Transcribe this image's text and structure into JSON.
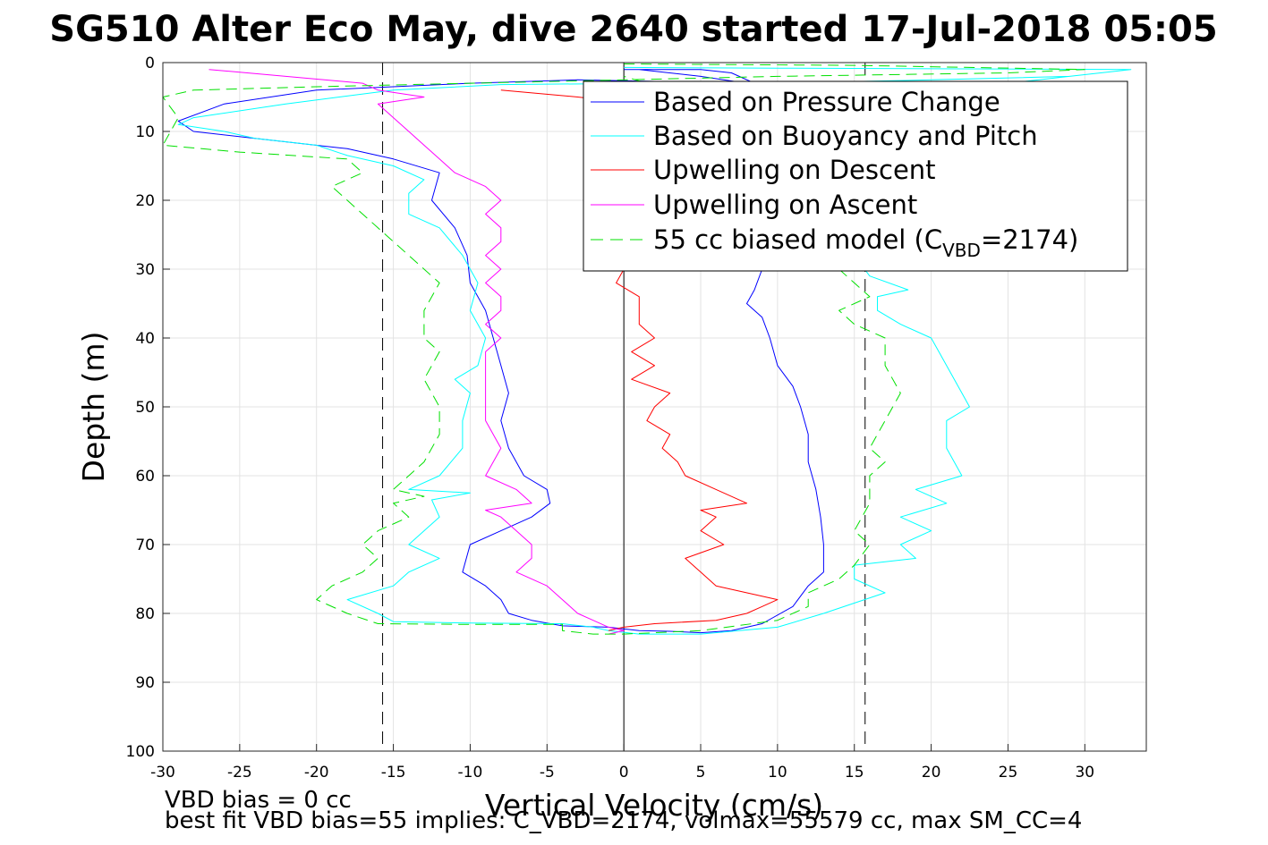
{
  "chart_data": {
    "type": "line",
    "title": "SG510 Alter Eco May, dive 2640 started 17-Jul-2018 05:05",
    "xlabel": "Vertical Velocity (cm/s)",
    "ylabel": "Depth (m)",
    "xlim": [
      -30,
      34
    ],
    "ylim": [
      0,
      100
    ],
    "y_reversed": true,
    "grid": true,
    "x_ticks": [
      "-30",
      "-25",
      "-20",
      "-15",
      "-10",
      "-5",
      "0",
      "5",
      "10",
      "15",
      "20",
      "25",
      "30"
    ],
    "y_ticks": [
      "0",
      "10",
      "20",
      "30",
      "40",
      "50",
      "60",
      "70",
      "80",
      "90",
      "100"
    ],
    "legend_position": "top-right",
    "legend": {
      "pressure": "Based on Pressure Change",
      "buoyancy": "Based on Buoyancy and Pitch",
      "descent": "Upwelling on Descent",
      "ascent": "Upwelling on Ascent",
      "model_prefix": "55 cc biased model (C",
      "model_sub": "VBD",
      "model_suffix": "=2174)"
    },
    "vertical_lines": [
      {
        "x": 0,
        "style": "solid",
        "color": "#000000"
      },
      {
        "x": -15.7,
        "style": "dashed",
        "color": "#000000"
      },
      {
        "x": 15.7,
        "style": "dashed",
        "color": "#000000"
      }
    ],
    "series": [
      {
        "key": "pressure",
        "color": "#0000ff",
        "style": "solid",
        "points": [
          [
            0,
            1
          ],
          [
            1,
            1
          ],
          [
            5,
            2
          ],
          [
            8,
            3
          ],
          [
            -3,
            2.5
          ],
          [
            -10,
            3
          ],
          [
            -20,
            4
          ],
          [
            -26,
            6
          ],
          [
            -29,
            8.5
          ],
          [
            -28,
            10
          ],
          [
            -24,
            11
          ],
          [
            -18,
            12.5
          ],
          [
            -15,
            14
          ],
          [
            -12,
            16
          ],
          [
            -12.5,
            20
          ],
          [
            -11,
            24
          ],
          [
            -10.2,
            28
          ],
          [
            -10,
            32
          ],
          [
            -9,
            36
          ],
          [
            -8.5,
            40
          ],
          [
            -8,
            44
          ],
          [
            -7.5,
            48
          ],
          [
            -8,
            52
          ],
          [
            -7.5,
            56
          ],
          [
            -6.5,
            60
          ],
          [
            -5,
            62
          ],
          [
            -4.8,
            64
          ],
          [
            -6,
            66
          ],
          [
            -8,
            68
          ],
          [
            -10,
            70
          ],
          [
            -10.5,
            74
          ],
          [
            -9,
            76
          ],
          [
            -8,
            78
          ],
          [
            -7.5,
            80
          ],
          [
            -6,
            81
          ],
          [
            -4,
            81.8
          ],
          [
            -1,
            82
          ],
          [
            1,
            82.5
          ],
          [
            3,
            82.6
          ],
          [
            5,
            82.8
          ],
          [
            7,
            82.5
          ],
          [
            9,
            81.5
          ],
          [
            11,
            79
          ],
          [
            12,
            76
          ],
          [
            13,
            74
          ],
          [
            13,
            70
          ],
          [
            12.8,
            66
          ],
          [
            12.5,
            62
          ],
          [
            12,
            58
          ],
          [
            12,
            54
          ],
          [
            11.5,
            50
          ],
          [
            11,
            47
          ],
          [
            10,
            44
          ],
          [
            9.5,
            40
          ],
          [
            9,
            37
          ],
          [
            8,
            35
          ],
          [
            8.5,
            33
          ],
          [
            9,
            30
          ],
          [
            9,
            22
          ],
          [
            9.5,
            18
          ],
          [
            10,
            14
          ],
          [
            10,
            8
          ],
          [
            9.5,
            4
          ],
          [
            7,
            1.5
          ],
          [
            5,
            1
          ],
          [
            1,
            1
          ]
        ]
      },
      {
        "key": "buoyancy",
        "color": "#00ffff",
        "style": "solid",
        "points": [
          [
            0,
            0.7
          ],
          [
            10,
            0.8
          ],
          [
            20,
            0.9
          ],
          [
            33,
            1
          ],
          [
            29,
            2
          ],
          [
            20,
            2.5
          ],
          [
            10,
            3
          ],
          [
            2,
            3
          ],
          [
            -8,
            3.2
          ],
          [
            -15,
            4
          ],
          [
            -22,
            6
          ],
          [
            -28,
            8
          ],
          [
            -29,
            9
          ],
          [
            -26,
            10
          ],
          [
            -24,
            11
          ],
          [
            -20,
            12
          ],
          [
            -18,
            13.5
          ],
          [
            -15,
            15
          ],
          [
            -13,
            17
          ],
          [
            -14,
            19
          ],
          [
            -14,
            22
          ],
          [
            -12,
            24
          ],
          [
            -10.5,
            28
          ],
          [
            -9.5,
            32
          ],
          [
            -10,
            36
          ],
          [
            -9,
            40
          ],
          [
            -9.5,
            44
          ],
          [
            -11,
            46
          ],
          [
            -10,
            48
          ],
          [
            -10.5,
            52
          ],
          [
            -10.5,
            56
          ],
          [
            -12,
            60
          ],
          [
            -14,
            62
          ],
          [
            -10,
            62.5
          ],
          [
            -12.5,
            63.5
          ],
          [
            -12,
            66
          ],
          [
            -13,
            68
          ],
          [
            -14,
            70
          ],
          [
            -12,
            72
          ],
          [
            -14,
            74
          ],
          [
            -15,
            76
          ],
          [
            -18,
            78
          ],
          [
            -16,
            80
          ],
          [
            -15,
            81.2
          ],
          [
            -10,
            81.4
          ],
          [
            -4,
            81.5
          ],
          [
            -2,
            82
          ],
          [
            -1,
            82.5
          ],
          [
            1,
            83
          ],
          [
            5,
            83
          ],
          [
            10,
            82
          ],
          [
            13,
            80
          ],
          [
            17,
            77
          ],
          [
            15,
            75
          ],
          [
            15,
            73
          ],
          [
            19,
            72
          ],
          [
            18,
            70
          ],
          [
            20,
            68
          ],
          [
            18,
            66
          ],
          [
            21,
            64
          ],
          [
            19,
            62
          ],
          [
            22,
            60
          ],
          [
            21,
            56
          ],
          [
            21,
            52
          ],
          [
            22.5,
            50
          ],
          [
            21.5,
            46
          ],
          [
            20.5,
            42
          ],
          [
            20,
            40
          ],
          [
            18,
            38
          ],
          [
            16.5,
            36
          ],
          [
            16.5,
            34
          ],
          [
            18.5,
            33
          ],
          [
            16,
            31
          ],
          [
            15,
            28
          ],
          [
            16,
            20
          ],
          [
            17,
            14
          ],
          [
            18,
            10
          ],
          [
            20,
            6
          ],
          [
            25,
            3
          ],
          [
            29,
            2
          ],
          [
            33,
            1
          ]
        ]
      },
      {
        "key": "descent",
        "color": "#ff0000",
        "style": "solid",
        "points": [
          [
            -8,
            4
          ],
          [
            -3,
            5
          ],
          [
            1,
            6
          ],
          [
            4,
            8
          ],
          [
            6,
            10
          ],
          [
            5,
            14
          ],
          [
            4,
            20
          ],
          [
            3,
            26
          ],
          [
            2,
            28
          ],
          [
            0,
            30
          ],
          [
            -0.5,
            32
          ],
          [
            1,
            34
          ],
          [
            1,
            38
          ],
          [
            2,
            40
          ],
          [
            0.5,
            42
          ],
          [
            2,
            44
          ],
          [
            0.5,
            46
          ],
          [
            3,
            48
          ],
          [
            2,
            50
          ],
          [
            1.5,
            52
          ],
          [
            3,
            54
          ],
          [
            2.5,
            56
          ],
          [
            3.5,
            58
          ],
          [
            4,
            60
          ],
          [
            6,
            62
          ],
          [
            8,
            64
          ],
          [
            5,
            65
          ],
          [
            6,
            66
          ],
          [
            5,
            68
          ],
          [
            6.5,
            70
          ],
          [
            4,
            72
          ],
          [
            5,
            74
          ],
          [
            6,
            76
          ],
          [
            10,
            78
          ],
          [
            9,
            79
          ],
          [
            8,
            80
          ],
          [
            6,
            81
          ],
          [
            2,
            81.5
          ],
          [
            0,
            82
          ],
          [
            -1,
            82.5
          ]
        ]
      },
      {
        "key": "ascent",
        "color": "#ff00ff",
        "style": "solid",
        "points": [
          [
            -27,
            1
          ],
          [
            -22,
            2
          ],
          [
            -17,
            3
          ],
          [
            -16,
            4
          ],
          [
            -13,
            5
          ],
          [
            -16,
            6
          ],
          [
            -15,
            8
          ],
          [
            -14,
            10
          ],
          [
            -13,
            12
          ],
          [
            -12,
            14
          ],
          [
            -11,
            16
          ],
          [
            -9,
            18
          ],
          [
            -8,
            20
          ],
          [
            -9,
            22
          ],
          [
            -8,
            24
          ],
          [
            -8,
            26
          ],
          [
            -9,
            28
          ],
          [
            -8,
            30
          ],
          [
            -9,
            32
          ],
          [
            -8,
            34
          ],
          [
            -8,
            36
          ],
          [
            -9,
            38
          ],
          [
            -8,
            40
          ],
          [
            -9,
            42
          ],
          [
            -9,
            44
          ],
          [
            -9,
            48
          ],
          [
            -9,
            52
          ],
          [
            -8,
            56
          ],
          [
            -9,
            60
          ],
          [
            -7,
            62
          ],
          [
            -6,
            64
          ],
          [
            -9,
            65
          ],
          [
            -8,
            66
          ],
          [
            -7,
            68
          ],
          [
            -6,
            70
          ],
          [
            -6,
            72
          ],
          [
            -7,
            74
          ],
          [
            -5,
            76
          ],
          [
            -4,
            78
          ],
          [
            -3,
            80
          ],
          [
            -2,
            81
          ],
          [
            -1,
            82
          ],
          [
            0,
            82.5
          ],
          [
            -1,
            83
          ]
        ]
      },
      {
        "key": "model",
        "color": "#00e000",
        "style": "dashed",
        "points": [
          [
            0,
            0.2
          ],
          [
            15,
            0.4
          ],
          [
            30,
            1
          ],
          [
            25,
            1.5
          ],
          [
            10,
            2
          ],
          [
            0,
            2.5
          ],
          [
            -10,
            3
          ],
          [
            -20,
            3.5
          ],
          [
            -28,
            4
          ],
          [
            -31,
            5
          ],
          [
            -29,
            8
          ],
          [
            -30,
            12
          ],
          [
            -25,
            13
          ],
          [
            -18,
            14
          ],
          [
            -17,
            16
          ],
          [
            -19,
            18
          ],
          [
            -18,
            20
          ],
          [
            -17,
            22
          ],
          [
            -15,
            26
          ],
          [
            -13,
            30
          ],
          [
            -12,
            32
          ],
          [
            -13,
            36
          ],
          [
            -13,
            40
          ],
          [
            -12,
            42
          ],
          [
            -13,
            46
          ],
          [
            -12,
            50
          ],
          [
            -12,
            54
          ],
          [
            -13,
            58
          ],
          [
            -14,
            60
          ],
          [
            -15,
            62
          ],
          [
            -13,
            63
          ],
          [
            -15,
            64
          ],
          [
            -14,
            66
          ],
          [
            -16,
            68
          ],
          [
            -17,
            70
          ],
          [
            -16,
            72
          ],
          [
            -17,
            74
          ],
          [
            -19,
            76
          ],
          [
            -20,
            78
          ],
          [
            -18,
            80
          ],
          [
            -16,
            81.5
          ],
          [
            -10,
            81.6
          ],
          [
            -4,
            81.6
          ],
          [
            -4,
            82.5
          ],
          [
            -2,
            83
          ],
          [
            0,
            83
          ],
          [
            5,
            82.5
          ],
          [
            10,
            81
          ],
          [
            12,
            79
          ],
          [
            12,
            77
          ],
          [
            14,
            75
          ],
          [
            15,
            73
          ],
          [
            16,
            70
          ],
          [
            15,
            68
          ],
          [
            16,
            64
          ],
          [
            16,
            60
          ],
          [
            17,
            58
          ],
          [
            16,
            56
          ],
          [
            17,
            52
          ],
          [
            18,
            48
          ],
          [
            17,
            44
          ],
          [
            17,
            40
          ],
          [
            15,
            38
          ],
          [
            14,
            36
          ],
          [
            16,
            34
          ],
          [
            15,
            32
          ],
          [
            14,
            30
          ],
          [
            12,
            26
          ],
          [
            10,
            20
          ],
          [
            8,
            14
          ],
          [
            6,
            8
          ],
          [
            3,
            4
          ],
          [
            0,
            2
          ]
        ]
      }
    ],
    "footer": {
      "line1": "VBD bias = 0 cc",
      "line2": "best fit VBD bias=55 implies: C_VBD=2174, volmax=55579 cc, max SM_CC=4"
    }
  }
}
